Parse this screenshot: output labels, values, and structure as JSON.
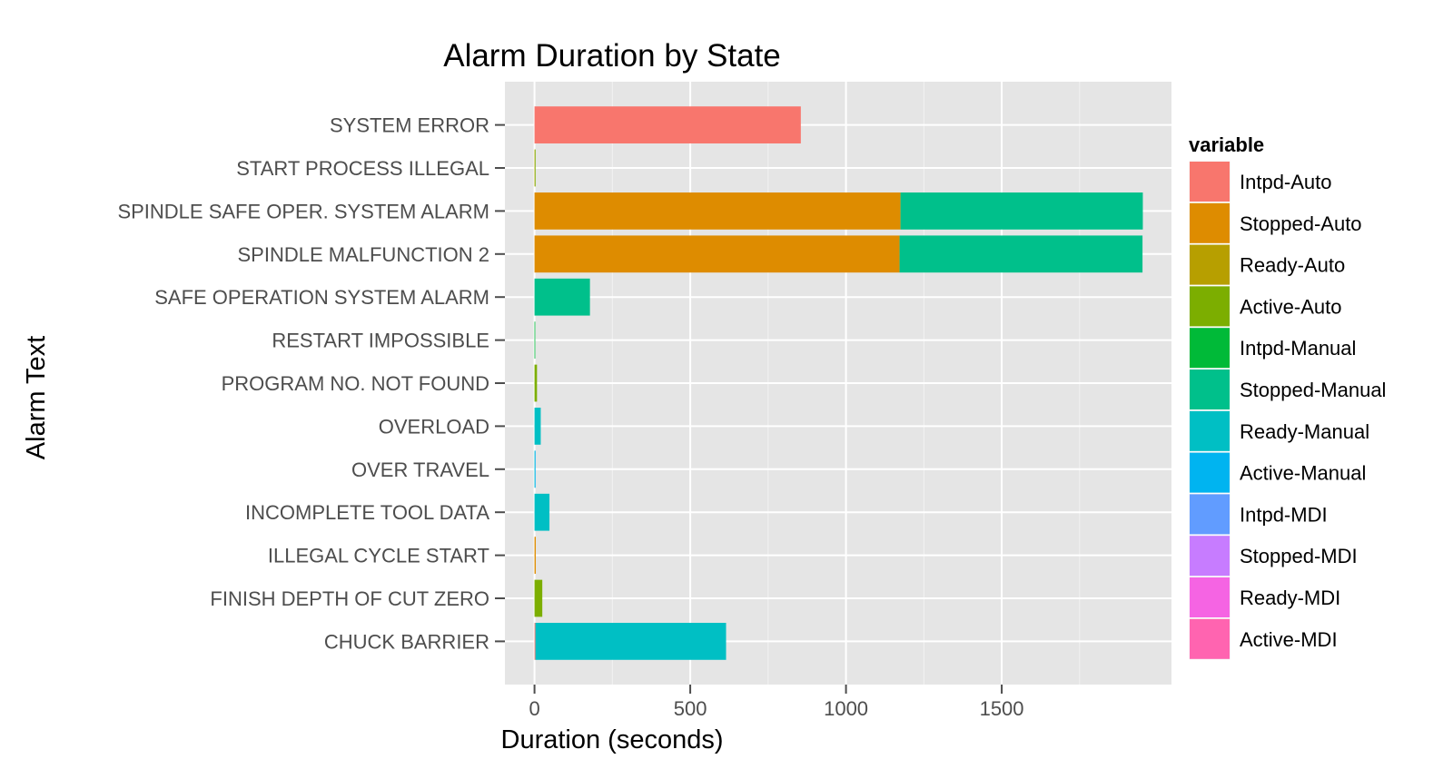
{
  "chart_data": {
    "type": "bar",
    "orientation": "horizontal",
    "stacked": true,
    "title": "Alarm Duration by State",
    "xlabel": "Duration (seconds)",
    "ylabel": "Alarm Text",
    "xlim": [
      -95,
      2045
    ],
    "xticks": [
      0,
      500,
      1000,
      1500
    ],
    "grid": true,
    "legend_position": "right",
    "legend_title": "variable",
    "categories": [
      "SYSTEM ERROR",
      "START PROCESS ILLEGAL",
      "SPINDLE SAFE OPER. SYSTEM ALARM",
      "SPINDLE MALFUNCTION 2",
      "SAFE OPERATION SYSTEM ALARM",
      "RESTART IMPOSSIBLE",
      "PROGRAM NO. NOT FOUND",
      "OVERLOAD",
      "OVER TRAVEL",
      "INCOMPLETE TOOL DATA",
      "ILLEGAL CYCLE START",
      "FINISH DEPTH OF CUT ZERO",
      "CHUCK BARRIER"
    ],
    "series": [
      {
        "name": "Intpd-Auto",
        "color": "#F8766D",
        "values": [
          855,
          0,
          0,
          0,
          0,
          0,
          0,
          0,
          0,
          0,
          0,
          0,
          3
        ]
      },
      {
        "name": "Stopped-Auto",
        "color": "#DE8C00",
        "values": [
          0,
          0,
          1175,
          1172,
          0,
          0,
          0,
          0,
          0,
          0,
          4,
          0,
          0
        ]
      },
      {
        "name": "Ready-Auto",
        "color": "#B79F00",
        "values": [
          0,
          1,
          0,
          0,
          0,
          0,
          0,
          0,
          0,
          0,
          0,
          0,
          0
        ]
      },
      {
        "name": "Active-Auto",
        "color": "#7CAE00",
        "values": [
          0,
          2,
          0,
          0,
          0,
          0,
          8,
          0,
          0,
          0,
          0,
          25,
          0
        ]
      },
      {
        "name": "Intpd-Manual",
        "color": "#00BA38",
        "values": [
          0,
          0,
          0,
          0,
          0,
          1,
          0,
          0,
          0,
          0,
          0,
          0,
          0
        ]
      },
      {
        "name": "Stopped-Manual",
        "color": "#00C08B",
        "values": [
          0,
          0,
          778,
          780,
          178,
          0,
          0,
          0,
          0,
          0,
          0,
          0,
          0
        ]
      },
      {
        "name": "Ready-Manual",
        "color": "#00BFC4",
        "values": [
          0,
          0,
          0,
          0,
          0,
          0,
          0,
          20,
          1,
          48,
          0,
          0,
          612
        ]
      },
      {
        "name": "Active-Manual",
        "color": "#00B4F0",
        "values": [
          0,
          0,
          0,
          0,
          0,
          0,
          0,
          0,
          2,
          0,
          0,
          0,
          0
        ]
      },
      {
        "name": "Intpd-MDI",
        "color": "#619CFF",
        "values": [
          0,
          0,
          0,
          0,
          0,
          0,
          0,
          0,
          0,
          0,
          0,
          0,
          0
        ]
      },
      {
        "name": "Stopped-MDI",
        "color": "#C77CFF",
        "values": [
          0,
          0,
          0,
          0,
          0,
          0,
          0,
          0,
          0,
          0,
          0,
          0,
          0
        ]
      },
      {
        "name": "Ready-MDI",
        "color": "#F564E3",
        "values": [
          0,
          0,
          0,
          0,
          0,
          0,
          0,
          0,
          0,
          0,
          0,
          0,
          0
        ]
      },
      {
        "name": "Active-MDI",
        "color": "#FF64B0",
        "values": [
          0,
          0,
          0,
          0,
          0,
          0,
          0,
          0,
          0,
          0,
          0,
          0,
          0
        ]
      }
    ]
  }
}
